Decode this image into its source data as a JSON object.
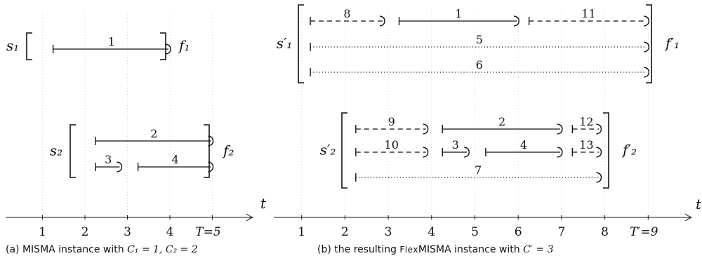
{
  "axis_symbol": "t",
  "panel_a": {
    "caption": {
      "label": "(a)",
      "text": "MISMA instance with",
      "cond": "C₁ = 1, C₂ = 2"
    },
    "ticks": [
      "1",
      "2",
      "3",
      "4",
      "T=5"
    ],
    "machines": [
      {
        "start": "s₁",
        "finish": "f₁",
        "jobs": [
          {
            "label": "1",
            "from": 1.25,
            "to": 4.0,
            "row": 0,
            "style": "solid"
          }
        ]
      },
      {
        "start": "s₂",
        "finish": "f₂",
        "jobs": [
          {
            "label": "2",
            "from": 2.25,
            "to": 5.0,
            "row": 0,
            "style": "solid"
          },
          {
            "label": "3",
            "from": 2.25,
            "to": 2.85,
            "row": 1,
            "style": "solid"
          },
          {
            "label": "4",
            "from": 3.25,
            "to": 5.0,
            "row": 1,
            "style": "solid"
          }
        ]
      }
    ]
  },
  "panel_b": {
    "caption": {
      "label": "(b)",
      "text_pre": "the resulting",
      "sc_name": "Flex",
      "name": "MISMA",
      "text_post": "instance with",
      "cond": "C′ = 3"
    },
    "ticks": [
      "1",
      "2",
      "3",
      "4",
      "5",
      "6",
      "7",
      "8",
      "T′=9"
    ],
    "machines": [
      {
        "start": "s′₁",
        "finish": "f′₁",
        "jobs": [
          {
            "label": "8",
            "from": 1.2,
            "to": 2.9,
            "row": 0,
            "style": "dashed"
          },
          {
            "label": "1",
            "from": 3.25,
            "to": 6.0,
            "row": 0,
            "style": "solid"
          },
          {
            "label": "11",
            "from": 6.25,
            "to": 9.0,
            "row": 0,
            "style": "dashed"
          },
          {
            "label": "5",
            "from": 1.2,
            "to": 9.0,
            "row": 1,
            "style": "dotted"
          },
          {
            "label": "6",
            "from": 1.2,
            "to": 9.0,
            "row": 2,
            "style": "dotted"
          }
        ]
      },
      {
        "start": "s′₂",
        "finish": "f′₂",
        "jobs": [
          {
            "label": "9",
            "from": 2.25,
            "to": 3.9,
            "row": 0,
            "style": "dashed"
          },
          {
            "label": "2",
            "from": 4.25,
            "to": 7.0,
            "row": 0,
            "style": "solid"
          },
          {
            "label": "12",
            "from": 7.25,
            "to": 7.9,
            "row": 0,
            "style": "dashed"
          },
          {
            "label": "10",
            "from": 2.25,
            "to": 3.9,
            "row": 1,
            "style": "dashed"
          },
          {
            "label": "3",
            "from": 4.25,
            "to": 4.85,
            "row": 1,
            "style": "solid"
          },
          {
            "label": "4",
            "from": 5.25,
            "to": 7.0,
            "row": 1,
            "style": "solid"
          },
          {
            "label": "13",
            "from": 7.25,
            "to": 7.9,
            "row": 1,
            "style": "dashed"
          },
          {
            "label": "7",
            "from": 2.25,
            "to": 7.9,
            "row": 2,
            "style": "dotted"
          }
        ]
      }
    ]
  }
}
